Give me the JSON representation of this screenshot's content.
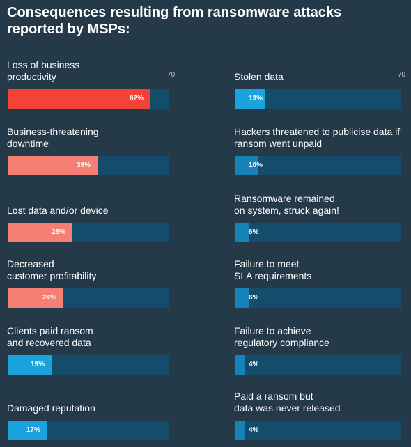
{
  "title": "Consequences resulting from ransomware attacks reported by MSPs:",
  "colors": {
    "background": "#253a48",
    "track": "#134d6b",
    "red": "#f44336",
    "salmon": "#f57f72",
    "light_blue": "#1aa3dc",
    "mid_blue": "#1682b8"
  },
  "chart_data": {
    "type": "bar",
    "orientation": "horizontal",
    "scale_max_label": "70",
    "xlim": [
      0,
      70
    ],
    "panels": [
      {
        "items": [
          {
            "label_lines": [
              "Loss of business",
              "productivity"
            ],
            "value": 62,
            "value_label": "62%",
            "color": "#f44336"
          },
          {
            "label_lines": [
              "Business-threatening",
              "downtime"
            ],
            "value": 39,
            "value_label": "39%",
            "color": "#f57f72"
          },
          {
            "label_lines": [
              "Lost data and/or device"
            ],
            "value": 28,
            "value_label": "28%",
            "color": "#f57f72"
          },
          {
            "label_lines": [
              "Decreased",
              "customer profitability"
            ],
            "value": 24,
            "value_label": "24%",
            "color": "#f57f72"
          },
          {
            "label_lines": [
              "Clients paid ransom",
              "and recovered data"
            ],
            "value": 19,
            "value_label": "19%",
            "color": "#1aa3dc"
          },
          {
            "label_lines": [
              "Damaged reputation"
            ],
            "value": 17,
            "value_label": "17%",
            "color": "#1aa3dc"
          }
        ]
      },
      {
        "items": [
          {
            "label_lines": [
              "Stolen data"
            ],
            "value": 13,
            "value_label": "13%",
            "color": "#1aa3dc"
          },
          {
            "label_lines": [
              "Hackers threatened to publicise data if",
              "ransom went unpaid"
            ],
            "value": 10,
            "value_label": "10%",
            "color": "#1682b8"
          },
          {
            "label_lines": [
              "Ransomware remained",
              "on system, struck again!"
            ],
            "value": 6,
            "value_label": "6%",
            "color": "#1682b8"
          },
          {
            "label_lines": [
              "Failure to meet",
              "SLA requirements"
            ],
            "value": 6,
            "value_label": "6%",
            "color": "#1682b8"
          },
          {
            "label_lines": [
              "Failure to achieve",
              "regulatory compliance"
            ],
            "value": 4,
            "value_label": "4%",
            "color": "#1682b8"
          },
          {
            "label_lines": [
              "Paid a ransom but",
              "data was never released"
            ],
            "value": 4,
            "value_label": "4%",
            "color": "#1682b8"
          }
        ]
      }
    ]
  }
}
